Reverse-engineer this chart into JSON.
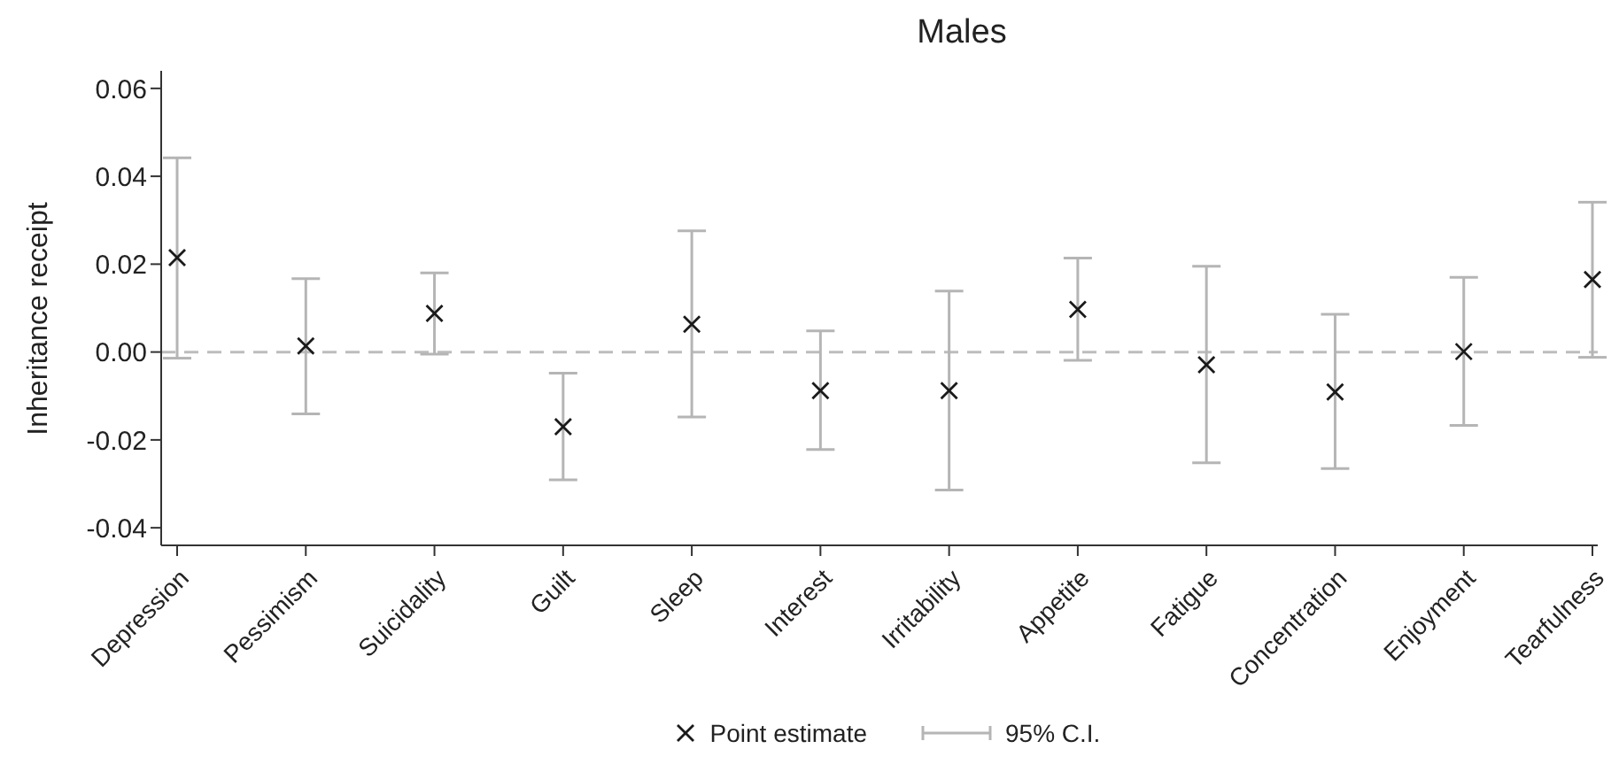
{
  "chart_data": {
    "type": "scatter",
    "title": "Males",
    "ylabel": "Inheritance receipt",
    "categories": [
      "Depression",
      "Pessimism",
      "Suicidality",
      "Guilt",
      "Sleep",
      "Interest",
      "Irritability",
      "Appetite",
      "Fatigue",
      "Concentration",
      "Enjoyment",
      "Tearfulness"
    ],
    "series": [
      {
        "name": "Point estimate",
        "color": "#1a1a1a",
        "values": [
          0.0215,
          0.0014,
          0.0088,
          -0.017,
          0.0063,
          -0.0088,
          -0.0088,
          0.0097,
          -0.0029,
          -0.0091,
          0.0001,
          0.0165
        ],
        "errors": [
          [
            -0.0014,
            0.0442
          ],
          [
            -0.0141,
            0.0167
          ],
          [
            -0.0005,
            0.018
          ],
          [
            -0.0291,
            -0.0048
          ],
          [
            -0.0148,
            0.0276
          ],
          [
            -0.0222,
            0.0048
          ],
          [
            -0.0314,
            0.0139
          ],
          [
            -0.0019,
            0.0214
          ],
          [
            -0.0252,
            0.0195
          ],
          [
            -0.0265,
            0.0086
          ],
          [
            -0.0167,
            0.017
          ],
          [
            -0.0012,
            0.0341
          ]
        ]
      }
    ],
    "ylim": [
      -0.044,
      0.064
    ],
    "yticks": [
      {
        "value": -0.04,
        "label": "-0.04"
      },
      {
        "value": -0.02,
        "label": "-0.02"
      },
      {
        "value": 0,
        "label": "0.00"
      },
      {
        "value": 0.02,
        "label": "0.02"
      },
      {
        "value": 0.04,
        "label": "0.04"
      },
      {
        "value": 0.06,
        "label": "0.06"
      }
    ],
    "ref_lines": [
      {
        "axis": "y",
        "value": 0,
        "color": "#bdbdbd",
        "line_style": "dashed"
      }
    ],
    "annotations": [
      "95% C.I."
    ],
    "marker": "cross",
    "legend": "bottom",
    "grid": false
  }
}
